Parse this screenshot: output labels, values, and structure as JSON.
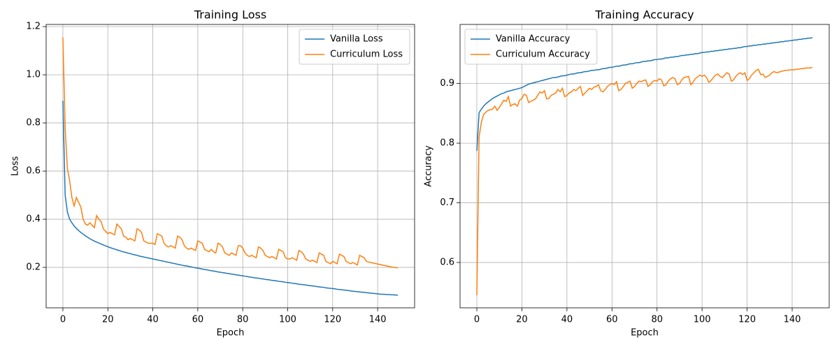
{
  "chart_data": [
    {
      "type": "line",
      "title": "Training Loss",
      "x_label": "Epoch",
      "y_label": "Loss",
      "legend": "upper right",
      "grid": true,
      "x": [
        0,
        1,
        2,
        3,
        4,
        5,
        6,
        7,
        8,
        9,
        10,
        11,
        12,
        13,
        14,
        15,
        16,
        17,
        18,
        19,
        20,
        21,
        22,
        23,
        24,
        25,
        26,
        27,
        28,
        29,
        30,
        31,
        32,
        33,
        34,
        35,
        36,
        37,
        38,
        39,
        40,
        41,
        42,
        43,
        44,
        45,
        46,
        47,
        48,
        49,
        50,
        51,
        52,
        53,
        54,
        55,
        56,
        57,
        58,
        59,
        60,
        61,
        62,
        63,
        64,
        65,
        66,
        67,
        68,
        69,
        70,
        71,
        72,
        73,
        74,
        75,
        76,
        77,
        78,
        79,
        80,
        81,
        82,
        83,
        84,
        85,
        86,
        87,
        88,
        89,
        90,
        91,
        92,
        93,
        94,
        95,
        96,
        97,
        98,
        99,
        100,
        101,
        102,
        103,
        104,
        105,
        106,
        107,
        108,
        109,
        110,
        111,
        112,
        113,
        114,
        115,
        116,
        117,
        118,
        119,
        120,
        121,
        122,
        123,
        124,
        125,
        126,
        127,
        128,
        129,
        130,
        131,
        132,
        133,
        134,
        135,
        136,
        137,
        138,
        139,
        140,
        141,
        142,
        143,
        144,
        145,
        146,
        147,
        148,
        149
      ],
      "xlim": [
        -7.45,
        156.45
      ],
      "xticks": [
        0,
        20,
        40,
        60,
        80,
        100,
        120,
        140
      ],
      "ylim": [
        0.032,
        1.209
      ],
      "yticks": [
        0.2,
        0.4,
        0.6,
        0.8,
        {
          "value": 1,
          "label": "1.0"
        },
        1.2
      ],
      "series": [
        {
          "name": "Vanilla Loss",
          "color": "#1f77b4",
          "values": [
            0.892,
            0.5,
            0.43,
            0.4,
            0.385,
            0.372,
            0.362,
            0.353,
            0.345,
            0.338,
            0.331,
            0.325,
            0.319,
            0.314,
            0.309,
            0.305,
            0.301,
            0.297,
            0.293,
            0.289,
            0.286,
            0.282,
            0.279,
            0.276,
            0.273,
            0.27,
            0.267,
            0.264,
            0.262,
            0.259,
            0.257,
            0.254,
            0.252,
            0.25,
            0.247,
            0.245,
            0.243,
            0.241,
            0.239,
            0.237,
            0.235,
            0.233,
            0.231,
            0.229,
            0.227,
            0.225,
            0.223,
            0.221,
            0.219,
            0.217,
            0.215,
            0.213,
            0.211,
            0.209,
            0.207,
            0.206,
            0.204,
            0.202,
            0.2,
            0.198,
            0.197,
            0.195,
            0.193,
            0.191,
            0.19,
            0.188,
            0.186,
            0.185,
            0.183,
            0.181,
            0.18,
            0.178,
            0.177,
            0.175,
            0.174,
            0.172,
            0.171,
            0.169,
            0.168,
            0.166,
            0.165,
            0.163,
            0.162,
            0.16,
            0.159,
            0.157,
            0.156,
            0.155,
            0.153,
            0.152,
            0.15,
            0.149,
            0.148,
            0.146,
            0.145,
            0.144,
            0.142,
            0.141,
            0.14,
            0.138,
            0.137,
            0.136,
            0.134,
            0.133,
            0.132,
            0.13,
            0.129,
            0.128,
            0.127,
            0.125,
            0.124,
            0.123,
            0.122,
            0.12,
            0.119,
            0.118,
            0.117,
            0.115,
            0.114,
            0.113,
            0.112,
            0.111,
            0.109,
            0.108,
            0.107,
            0.106,
            0.105,
            0.104,
            0.102,
            0.101,
            0.1,
            0.099,
            0.098,
            0.097,
            0.096,
            0.095,
            0.094,
            0.093,
            0.092,
            0.091,
            0.09,
            0.089,
            0.088,
            0.088,
            0.087,
            0.087,
            0.086,
            0.086,
            0.085,
            0.085
          ]
        },
        {
          "name": "Curriculum Loss",
          "color": "#ff7f0e",
          "values": [
            1.155,
            0.78,
            0.61,
            0.56,
            0.49,
            0.455,
            0.49,
            0.47,
            0.45,
            0.4,
            0.38,
            0.375,
            0.385,
            0.375,
            0.365,
            0.415,
            0.4,
            0.39,
            0.36,
            0.35,
            0.34,
            0.345,
            0.34,
            0.335,
            0.38,
            0.37,
            0.36,
            0.33,
            0.325,
            0.315,
            0.32,
            0.315,
            0.31,
            0.36,
            0.355,
            0.345,
            0.31,
            0.305,
            0.3,
            0.3,
            0.3,
            0.295,
            0.34,
            0.335,
            0.33,
            0.3,
            0.29,
            0.285,
            0.29,
            0.285,
            0.28,
            0.33,
            0.325,
            0.315,
            0.29,
            0.28,
            0.275,
            0.28,
            0.275,
            0.27,
            0.31,
            0.305,
            0.3,
            0.275,
            0.27,
            0.265,
            0.275,
            0.265,
            0.26,
            0.3,
            0.295,
            0.285,
            0.26,
            0.255,
            0.25,
            0.26,
            0.255,
            0.25,
            0.29,
            0.29,
            0.28,
            0.26,
            0.25,
            0.245,
            0.25,
            0.245,
            0.24,
            0.285,
            0.28,
            0.27,
            0.25,
            0.245,
            0.24,
            0.245,
            0.24,
            0.235,
            0.275,
            0.27,
            0.265,
            0.24,
            0.235,
            0.235,
            0.24,
            0.235,
            0.23,
            0.27,
            0.265,
            0.255,
            0.235,
            0.23,
            0.225,
            0.23,
            0.225,
            0.22,
            0.26,
            0.255,
            0.25,
            0.225,
            0.22,
            0.215,
            0.225,
            0.22,
            0.215,
            0.255,
            0.25,
            0.245,
            0.225,
            0.22,
            0.215,
            0.22,
            0.215,
            0.21,
            0.25,
            0.245,
            0.24,
            0.225,
            0.222,
            0.22,
            0.218,
            0.216,
            0.214,
            0.212,
            0.21,
            0.208,
            0.206,
            0.204,
            0.202,
            0.2,
            0.199,
            0.198
          ]
        }
      ]
    },
    {
      "type": "line",
      "title": "Training Accuracy",
      "x_label": "Epoch",
      "y_label": "Accuracy",
      "legend": "upper left",
      "grid": true,
      "x": [
        0,
        1,
        2,
        3,
        4,
        5,
        6,
        7,
        8,
        9,
        10,
        11,
        12,
        13,
        14,
        15,
        16,
        17,
        18,
        19,
        20,
        21,
        22,
        23,
        24,
        25,
        26,
        27,
        28,
        29,
        30,
        31,
        32,
        33,
        34,
        35,
        36,
        37,
        38,
        39,
        40,
        41,
        42,
        43,
        44,
        45,
        46,
        47,
        48,
        49,
        50,
        51,
        52,
        53,
        54,
        55,
        56,
        57,
        58,
        59,
        60,
        61,
        62,
        63,
        64,
        65,
        66,
        67,
        68,
        69,
        70,
        71,
        72,
        73,
        74,
        75,
        76,
        77,
        78,
        79,
        80,
        81,
        82,
        83,
        84,
        85,
        86,
        87,
        88,
        89,
        90,
        91,
        92,
        93,
        94,
        95,
        96,
        97,
        98,
        99,
        100,
        101,
        102,
        103,
        104,
        105,
        106,
        107,
        108,
        109,
        110,
        111,
        112,
        113,
        114,
        115,
        116,
        117,
        118,
        119,
        120,
        121,
        122,
        123,
        124,
        125,
        126,
        127,
        128,
        129,
        130,
        131,
        132,
        133,
        134,
        135,
        136,
        137,
        138,
        139,
        140,
        141,
        142,
        143,
        144,
        145,
        146,
        147,
        148,
        149
      ],
      "xlim": [
        -7.45,
        156.45
      ],
      "xticks": [
        0,
        20,
        40,
        60,
        80,
        100,
        120,
        140
      ],
      "ylim": [
        0.524,
        0.999
      ],
      "yticks": [
        0.6,
        0.7,
        0.8,
        0.9
      ],
      "series": [
        {
          "name": "Vanilla Accuracy",
          "color": "#1f77b4",
          "values": [
            0.787,
            0.851,
            0.857,
            0.862,
            0.866,
            0.869,
            0.872,
            0.875,
            0.877,
            0.879,
            0.881,
            0.883,
            0.884,
            0.886,
            0.887,
            0.888,
            0.889,
            0.89,
            0.891,
            0.892,
            0.893,
            0.895,
            0.897,
            0.899,
            0.9,
            0.901,
            0.902,
            0.903,
            0.904,
            0.905,
            0.906,
            0.907,
            0.908,
            0.909,
            0.91,
            0.91,
            0.911,
            0.912,
            0.913,
            0.913,
            0.914,
            0.915,
            0.916,
            0.916,
            0.917,
            0.918,
            0.918,
            0.919,
            0.92,
            0.92,
            0.921,
            0.922,
            0.922,
            0.923,
            0.923,
            0.924,
            0.925,
            0.925,
            0.926,
            0.927,
            0.927,
            0.928,
            0.929,
            0.929,
            0.93,
            0.931,
            0.931,
            0.932,
            0.933,
            0.933,
            0.934,
            0.935,
            0.935,
            0.936,
            0.937,
            0.937,
            0.938,
            0.938,
            0.939,
            0.94,
            0.94,
            0.941,
            0.941,
            0.942,
            0.943,
            0.943,
            0.944,
            0.944,
            0.945,
            0.945,
            0.946,
            0.947,
            0.947,
            0.948,
            0.948,
            0.949,
            0.949,
            0.95,
            0.95,
            0.951,
            0.952,
            0.952,
            0.953,
            0.953,
            0.954,
            0.954,
            0.955,
            0.955,
            0.956,
            0.956,
            0.957,
            0.957,
            0.958,
            0.958,
            0.959,
            0.959,
            0.96,
            0.96,
            0.961,
            0.962,
            0.962,
            0.963,
            0.963,
            0.964,
            0.964,
            0.965,
            0.965,
            0.966,
            0.966,
            0.967,
            0.967,
            0.968,
            0.968,
            0.969,
            0.969,
            0.97,
            0.97,
            0.971,
            0.971,
            0.972,
            0.972,
            0.973,
            0.973,
            0.974,
            0.974,
            0.975,
            0.975,
            0.976,
            0.976,
            0.977
          ]
        },
        {
          "name": "Curriculum Accuracy",
          "color": "#ff7f0e",
          "values": [
            0.545,
            0.81,
            0.835,
            0.848,
            0.852,
            0.855,
            0.856,
            0.857,
            0.862,
            0.855,
            0.86,
            0.866,
            0.872,
            0.87,
            0.878,
            0.862,
            0.865,
            0.866,
            0.862,
            0.872,
            0.875,
            0.882,
            0.88,
            0.868,
            0.87,
            0.872,
            0.874,
            0.88,
            0.886,
            0.884,
            0.888,
            0.874,
            0.875,
            0.88,
            0.882,
            0.884,
            0.89,
            0.886,
            0.892,
            0.878,
            0.88,
            0.884,
            0.886,
            0.89,
            0.888,
            0.892,
            0.895,
            0.88,
            0.884,
            0.888,
            0.892,
            0.89,
            0.894,
            0.895,
            0.898,
            0.888,
            0.886,
            0.89,
            0.895,
            0.898,
            0.9,
            0.898,
            0.903,
            0.888,
            0.89,
            0.895,
            0.9,
            0.902,
            0.904,
            0.892,
            0.895,
            0.9,
            0.904,
            0.903,
            0.905,
            0.906,
            0.895,
            0.898,
            0.903,
            0.905,
            0.904,
            0.908,
            0.906,
            0.896,
            0.898,
            0.904,
            0.908,
            0.91,
            0.908,
            0.898,
            0.9,
            0.906,
            0.91,
            0.911,
            0.912,
            0.898,
            0.902,
            0.908,
            0.911,
            0.914,
            0.912,
            0.914,
            0.91,
            0.902,
            0.905,
            0.91,
            0.914,
            0.916,
            0.912,
            0.91,
            0.914,
            0.918,
            0.916,
            0.904,
            0.906,
            0.912,
            0.916,
            0.918,
            0.915,
            0.918,
            0.905,
            0.908,
            0.914,
            0.918,
            0.922,
            0.924,
            0.915,
            0.916,
            0.91,
            0.912,
            0.914,
            0.918,
            0.92,
            0.918,
            0.919,
            0.92,
            0.921,
            0.922,
            0.922,
            0.923,
            0.923,
            0.923,
            0.924,
            0.924,
            0.925,
            0.925,
            0.926,
            0.926,
            0.926,
            0.927
          ]
        }
      ]
    }
  ]
}
